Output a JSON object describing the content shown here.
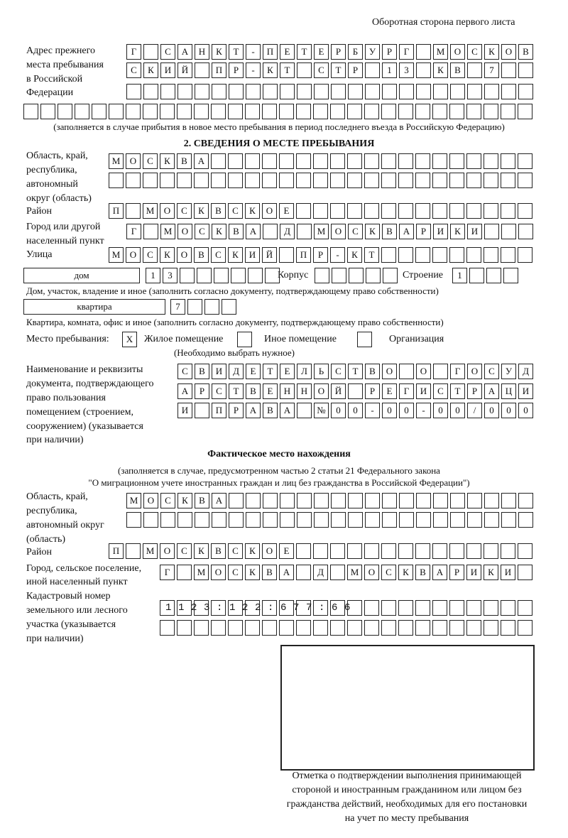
{
  "header": "Оборотная сторона первого листа",
  "previous_address": {
    "label": [
      "Адрес прежнего",
      "места пребывания",
      "в Российской",
      "Федерации"
    ],
    "rows": [
      "Г САНКТ-ПЕТЕРБУРГ МОСКОВ",
      "СКИЙ ПР-КТ СТР 13 КВ 7",
      "",
      ""
    ],
    "note": "(заполняется в случае прибытия в новое место пребывания в период последнего въезда в Российскую Федерацию)"
  },
  "stay": {
    "heading": "2. СВЕДЕНИЯ О МЕСТЕ ПРЕБЫВАНИЯ",
    "region_label": [
      "Область, край,",
      "республика,",
      "автономный",
      "округ (область)"
    ],
    "region_rows": [
      "МОСКВА",
      ""
    ],
    "district_label": "Район",
    "district": "П МОСКВСКОЕ",
    "city_label": [
      "Город или другой",
      "населенный пункт"
    ],
    "city": "Г МОСКВА Д МОСКВАРИКИ",
    "street_label": "Улица",
    "street": "МОСКОВСКИЙ ПР-КТ",
    "house_type": "дом",
    "house_number": "13",
    "korpus_label": "Корпус",
    "korpus": "",
    "stroenie_label": "Строение",
    "stroenie": "1",
    "house_note": "Дом, участок, владение и иное (заполнить согласно документу, подтверждающему право собственности)",
    "apartment_type": "квартира",
    "apartment_number": "7",
    "apartment_note": "Квартира, комната, офис и иное (заполнить согласно документу, подтверждающему право собственности)",
    "place_label": "Место пребывания:",
    "place_options": [
      {
        "label": "Жилое помещение",
        "checked": true,
        "mark": "X"
      },
      {
        "label": "Иное помещение",
        "checked": false,
        "mark": ""
      },
      {
        "label": "Организация",
        "checked": false,
        "mark": ""
      }
    ],
    "place_note": "(Необходимо выбрать нужное)",
    "document_label": [
      "Наименование и реквизиты",
      "документа, подтверждающего",
      "право пользования",
      "помещением (строением,",
      "сооружением) (указывается",
      "при наличии)"
    ],
    "document_rows": [
      "СВИДЕТЕЛЬСТВО О ГОСУД",
      "АРСТВЕННОЙ РЕГИСТРАЦИ",
      "И ПРАВА №00-00-00/000"
    ]
  },
  "actual": {
    "heading": "Фактическое место нахождения",
    "note": [
      "(заполняется в случае, предусмотренном частью 2 статьи 21 Федерального закона",
      "\"О миграционном учете иностранных граждан и лиц без гражданства в Российской Федерации\")"
    ],
    "region_label": [
      "Область, край,",
      "республика,",
      "автономный округ",
      "(область)"
    ],
    "region_rows": [
      "МОСКВА",
      ""
    ],
    "district_label": "Район",
    "district": "П МОСКВСКОЕ",
    "city_label": [
      "Город, сельское поселение,",
      "иной населенный пункт"
    ],
    "city": "Г МОСКВА Д МОСКВАРИКИ",
    "cadastre_label": [
      "Кадастровый номер",
      "земельного или лесного",
      "участка (указывается",
      "при наличии)"
    ],
    "cadastre_rows": [
      "1123:122:677:66",
      ""
    ]
  },
  "stamp_caption": [
    "Отметка о подтверждении выполнения принимающей",
    "стороной и иностранным гражданином или лицом без",
    "гражданства действий, необходимых для его постановки",
    "на учет по месту пребывания"
  ]
}
